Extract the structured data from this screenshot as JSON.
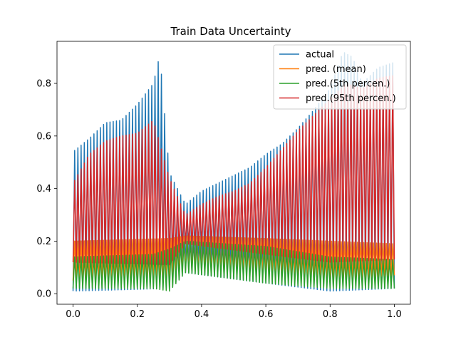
{
  "chart_data": {
    "type": "line",
    "title": "Train Data Uncertainty",
    "xlabel": "",
    "ylabel": "",
    "xlim": [
      -0.05,
      1.05
    ],
    "ylim": [
      -0.04,
      0.96
    ],
    "x_ticks": [
      "0.0",
      "0.2",
      "0.4",
      "0.6",
      "0.8",
      "1.0"
    ],
    "x_tick_values": [
      0.0,
      0.2,
      0.4,
      0.6,
      0.8,
      1.0
    ],
    "y_ticks": [
      "0.0",
      "0.2",
      "0.4",
      "0.6",
      "0.8"
    ],
    "y_tick_values": [
      0.0,
      0.2,
      0.4,
      0.6,
      0.8
    ],
    "grid": false,
    "legend_position": "top-right",
    "cycles": 100,
    "x_range": [
      0.0,
      1.0
    ],
    "series": [
      {
        "name": "actual",
        "color": "#1f77b4",
        "peak_profile": {
          "x": [
            0.0,
            0.05,
            0.1,
            0.15,
            0.2,
            0.25,
            0.27,
            0.3,
            0.35,
            0.4,
            0.45,
            0.5,
            0.55,
            0.6,
            0.65,
            0.7,
            0.75,
            0.8,
            0.84,
            0.87,
            0.9,
            0.95,
            1.0
          ],
          "y": [
            0.54,
            0.59,
            0.65,
            0.66,
            0.72,
            0.8,
            0.91,
            0.46,
            0.34,
            0.39,
            0.42,
            0.45,
            0.48,
            0.53,
            0.57,
            0.63,
            0.7,
            0.78,
            0.92,
            0.9,
            0.8,
            0.86,
            0.88
          ]
        },
        "trough_profile": {
          "x": [
            0.0,
            0.3,
            0.35,
            0.6,
            0.8,
            1.0
          ],
          "y": [
            0.01,
            0.02,
            0.08,
            0.04,
            0.01,
            0.02
          ]
        }
      },
      {
        "name": "pred. (mean)",
        "color": "#ff7f0e",
        "peak_profile": {
          "x": [
            0.0,
            0.3,
            0.35,
            0.6,
            0.8,
            1.0
          ],
          "y": [
            0.2,
            0.21,
            0.22,
            0.21,
            0.2,
            0.19
          ]
        },
        "trough_profile": {
          "x": [
            0.0,
            0.3,
            0.35,
            0.6,
            0.8,
            1.0
          ],
          "y": [
            0.05,
            0.05,
            0.09,
            0.07,
            0.05,
            0.07
          ]
        }
      },
      {
        "name": "pred.(5th percen.)",
        "color": "#2ca02c",
        "peak_profile": {
          "x": [
            0.0,
            0.25,
            0.3,
            0.35,
            0.6,
            0.8,
            1.0
          ],
          "y": [
            0.14,
            0.15,
            0.17,
            0.2,
            0.18,
            0.14,
            0.13
          ]
        },
        "trough_profile": {
          "x": [
            0.0,
            0.25,
            0.3,
            0.35,
            0.6,
            0.8,
            1.0
          ],
          "y": [
            0.02,
            0.02,
            0.01,
            0.08,
            0.04,
            0.02,
            0.02
          ]
        }
      },
      {
        "name": "pred.(95th percen.)",
        "color": "#d62728",
        "peak_profile": {
          "x": [
            0.0,
            0.05,
            0.1,
            0.15,
            0.2,
            0.25,
            0.3,
            0.35,
            0.4,
            0.45,
            0.5,
            0.55,
            0.6,
            0.65,
            0.7,
            0.75,
            0.8,
            0.85,
            0.9,
            0.95,
            1.0
          ],
          "y": [
            0.42,
            0.53,
            0.58,
            0.6,
            0.61,
            0.66,
            0.44,
            0.3,
            0.34,
            0.37,
            0.39,
            0.42,
            0.48,
            0.55,
            0.62,
            0.68,
            0.74,
            0.8,
            0.78,
            0.82,
            0.83
          ]
        },
        "trough_profile": {
          "x": [
            0.0,
            0.3,
            0.35,
            0.6,
            0.8,
            1.0
          ],
          "y": [
            0.12,
            0.11,
            0.19,
            0.15,
            0.12,
            0.13
          ]
        }
      }
    ]
  }
}
